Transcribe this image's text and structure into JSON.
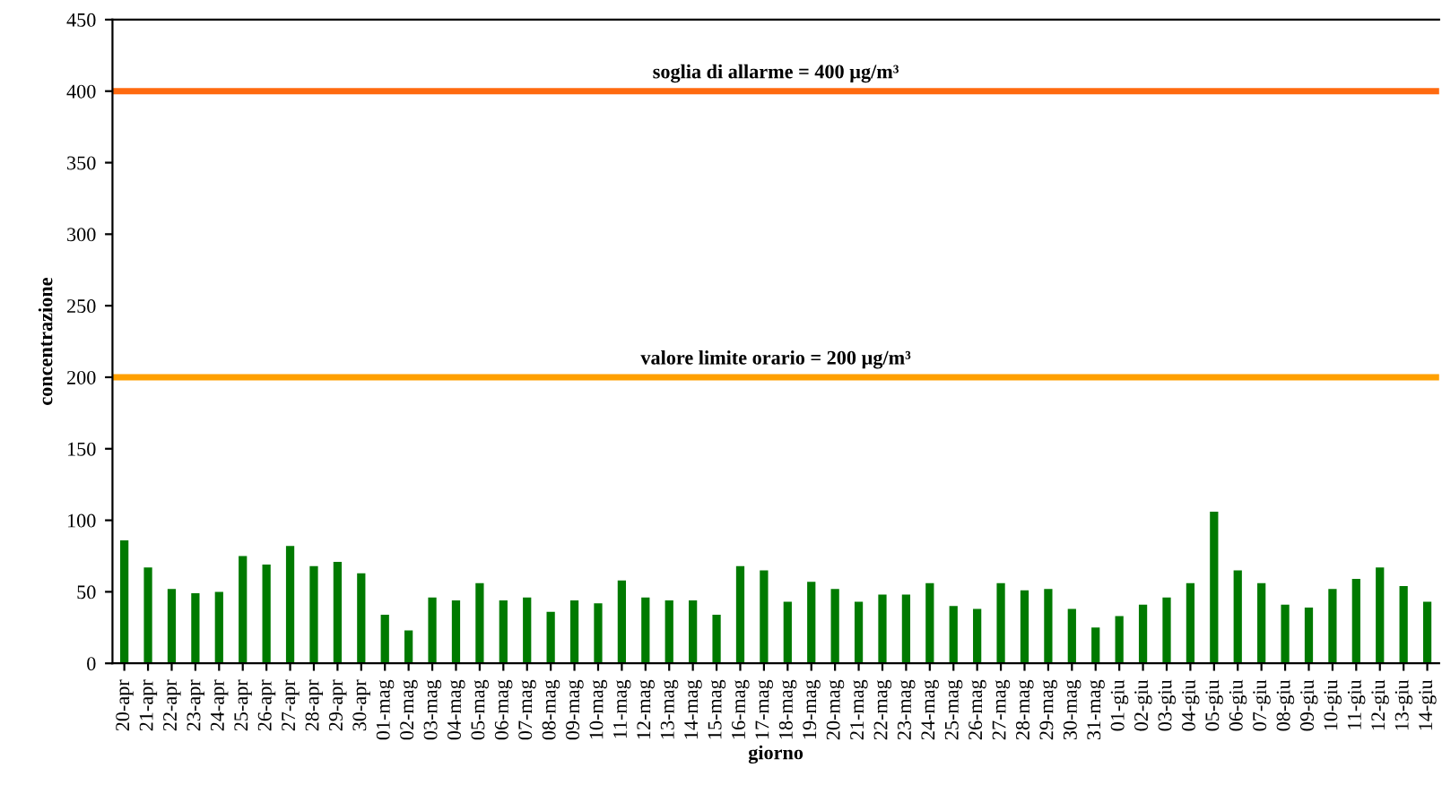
{
  "chart_data": {
    "type": "bar",
    "xlabel": "giorno",
    "ylabel": "concentrazione",
    "categories": [
      "20-apr",
      "21-apr",
      "22-apr",
      "23-apr",
      "24-apr",
      "25-apr",
      "26-apr",
      "27-apr",
      "28-apr",
      "29-apr",
      "30-apr",
      "01-mag",
      "02-mag",
      "03-mag",
      "04-mag",
      "05-mag",
      "06-mag",
      "07-mag",
      "08-mag",
      "09-mag",
      "10-mag",
      "11-mag",
      "12-mag",
      "13-mag",
      "14-mag",
      "15-mag",
      "16-mag",
      "17-mag",
      "18-mag",
      "19-mag",
      "20-mag",
      "21-mag",
      "22-mag",
      "23-mag",
      "24-mag",
      "25-mag",
      "26-mag",
      "27-mag",
      "28-mag",
      "29-mag",
      "30-mag",
      "31-mag",
      "01-giu",
      "02-giu",
      "03-giu",
      "04-giu",
      "05-giu",
      "06-giu",
      "07-giu",
      "08-giu",
      "09-giu",
      "10-giu",
      "11-giu",
      "12-giu",
      "13-giu",
      "14-giu"
    ],
    "values": [
      86,
      67,
      52,
      49,
      50,
      75,
      69,
      82,
      68,
      71,
      63,
      34,
      23,
      46,
      44,
      56,
      44,
      46,
      36,
      44,
      42,
      58,
      46,
      44,
      44,
      34,
      68,
      65,
      43,
      57,
      52,
      43,
      48,
      48,
      56,
      40,
      38,
      56,
      51,
      52,
      38,
      25,
      33,
      41,
      46,
      56,
      106,
      65,
      56,
      41,
      39,
      52,
      59,
      67,
      54,
      43
    ],
    "color": "#007a00",
    "ylim": [
      0,
      450
    ],
    "yticks": [
      0,
      50,
      100,
      150,
      200,
      250,
      300,
      350,
      400,
      450
    ],
    "grid": false,
    "ref_lines": [
      {
        "axis": "y",
        "value": 400,
        "label": "soglia di allarme = 400 µg/m³",
        "color": "#ff6a10"
      },
      {
        "axis": "y",
        "value": 200,
        "label": "valore limite orario = 200 µg/m³",
        "color": "#ffa000"
      }
    ]
  }
}
